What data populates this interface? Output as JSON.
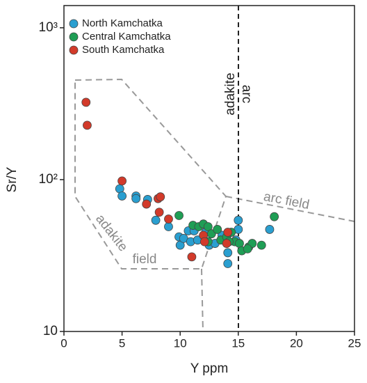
{
  "chart_data": {
    "type": "scatter",
    "xlabel": "Y ppm",
    "ylabel": "Sr/Y",
    "xlim": [
      0,
      25
    ],
    "ylim": [
      10,
      1400
    ],
    "log_y": true,
    "xticks": [
      0,
      5,
      10,
      15,
      20,
      25
    ],
    "yticks": [
      10,
      {
        "value": 100,
        "label": "10²"
      },
      {
        "value": 1000,
        "label": "10³"
      }
    ],
    "legend": "upper left",
    "annotations": [
      "adakite",
      "arc",
      "adakite",
      "field",
      "arc field"
    ],
    "series": [
      {
        "name": "North Kamchatka",
        "color": "#2a9fd0",
        "x": [
          4.8,
          5.0,
          6.2,
          6.2,
          7.2,
          7.9,
          9.0,
          9.9,
          10.0,
          10.3,
          10.7,
          10.9,
          11.2,
          11.5,
          12.2,
          12.5,
          13.0,
          13.6,
          14.1,
          14.8,
          15.0,
          15.0,
          14.1,
          17.7
        ],
        "values": [
          87,
          78,
          78,
          75,
          74,
          54,
          49,
          42,
          37,
          41,
          46,
          39,
          46,
          40,
          45,
          37,
          38,
          43,
          33,
          40,
          54,
          47,
          28,
          47
        ]
      },
      {
        "name": "Central Kamchatka",
        "color": "#1f9e55",
        "x": [
          9.9,
          11.1,
          11.6,
          12.0,
          12.4,
          12.7,
          13.2,
          13.5,
          14.0,
          14.4,
          14.7,
          15.1,
          15.3,
          15.9,
          16.2,
          17.0,
          15.8,
          18.1,
          12.4,
          14.2
        ],
        "values": [
          58,
          50,
          49,
          51,
          49,
          44,
          47,
          40,
          42,
          45,
          39,
          38,
          34,
          36,
          38,
          37,
          35,
          57,
          39,
          39
        ]
      },
      {
        "name": "South Kamchatka",
        "color": "#d23a2a",
        "x": [
          1.9,
          2.0,
          5.0,
          7.1,
          8.1,
          8.3,
          8.2,
          9.0,
          12.0,
          12.1,
          14.1,
          14.0,
          11.0
        ],
        "values": [
          323,
          228,
          98,
          69,
          75,
          77,
          61,
          55,
          43,
          39,
          45,
          38,
          31
        ]
      }
    ]
  }
}
